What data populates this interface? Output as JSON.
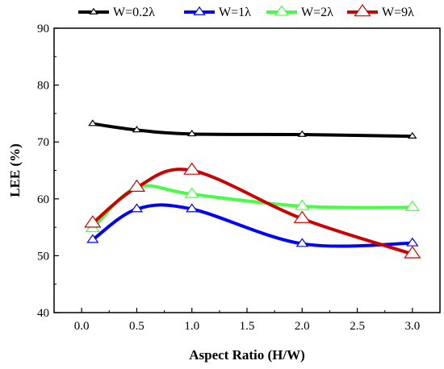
{
  "chart_data": {
    "type": "line",
    "xlabel": "Aspect Ratio (H/W)",
    "ylabel": "LEE (%)",
    "xlim": [
      -0.25,
      3.25
    ],
    "ylim": [
      40,
      90
    ],
    "x_ticks": [
      "0.0",
      "0.5",
      "1.0",
      "1.5",
      "2.0",
      "2.5",
      "3.0"
    ],
    "y_ticks": [
      "40",
      "50",
      "60",
      "70",
      "80",
      "90"
    ],
    "x": [
      0.1,
      0.5,
      1.0,
      2.0,
      3.0
    ],
    "grid": false,
    "legend_position": "top",
    "series": [
      {
        "name": "W=0.2λ",
        "color": "#000000",
        "values": [
          73.2,
          72.1,
          71.4,
          71.3,
          71.0
        ]
      },
      {
        "name": "W=1λ",
        "color": "#0000ff",
        "values": [
          52.8,
          58.2,
          58.2,
          52.1,
          52.2
        ]
      },
      {
        "name": "W=2λ",
        "color": "#44ff44",
        "values": [
          54.8,
          62.0,
          60.8,
          58.7,
          58.5
        ]
      },
      {
        "name": "W=9λ",
        "color": "#cc0000",
        "values": [
          55.7,
          62.0,
          65.0,
          56.5,
          50.3
        ]
      }
    ]
  }
}
